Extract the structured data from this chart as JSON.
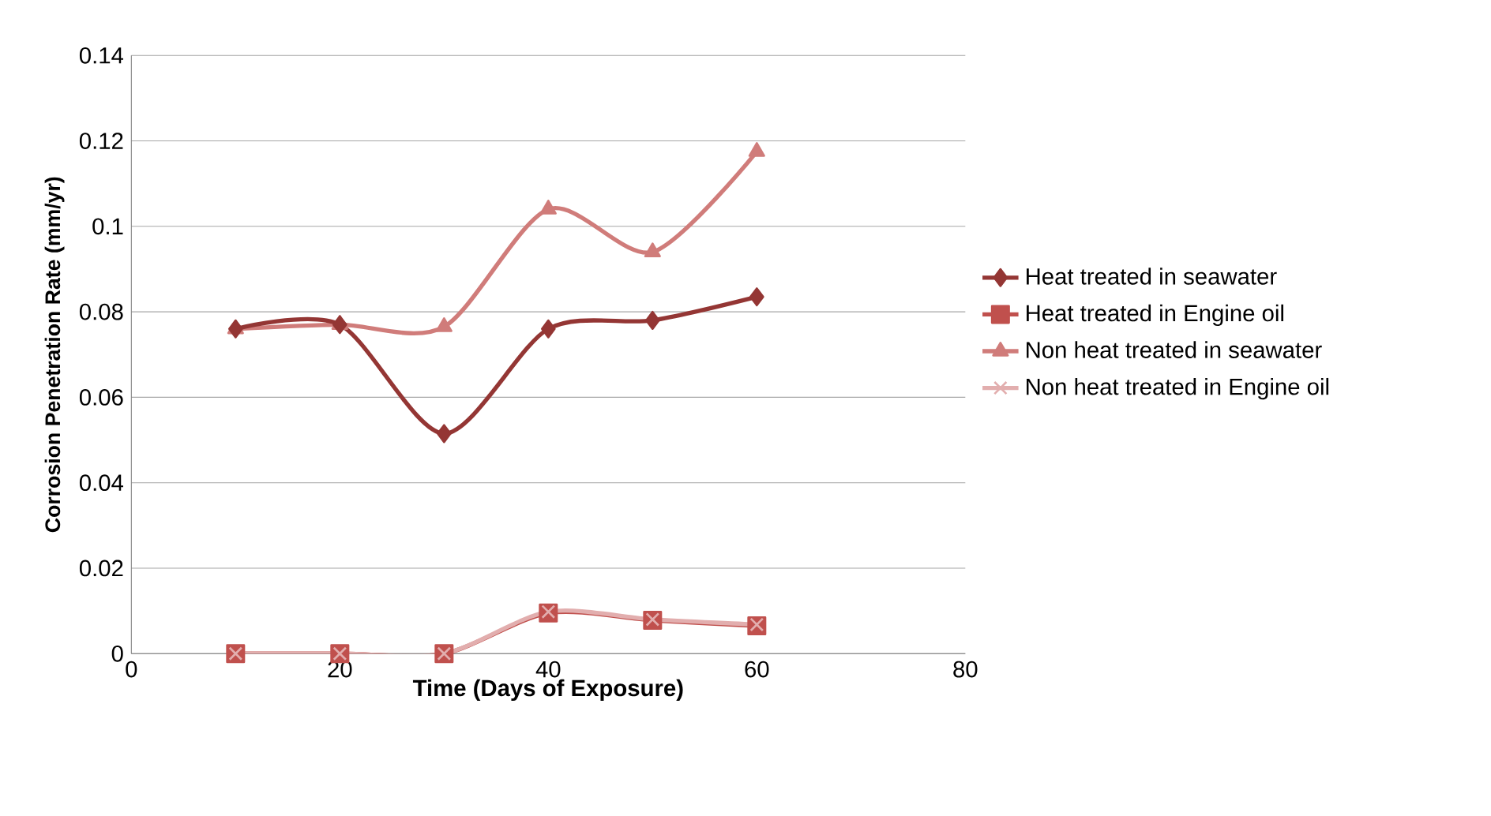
{
  "chart_data": {
    "type": "line",
    "xlabel": "Time (Days of Exposure)",
    "ylabel": "Corrosion Penetration Rate (mm/yr)",
    "x": [
      10,
      20,
      30,
      40,
      50,
      60
    ],
    "series": [
      {
        "name": "Heat treated in seawater",
        "color": "#943634",
        "marker": "diamond",
        "values": [
          0.076,
          0.077,
          0.0515,
          0.076,
          0.078,
          0.0835
        ]
      },
      {
        "name": "Heat treated in Engine oil",
        "color": "#c0504d",
        "marker": "square",
        "values": [
          0,
          0,
          0,
          0.0095,
          0.0078,
          0.0065
        ]
      },
      {
        "name": "Non heat treated in seawater",
        "color": "#d07c7a",
        "marker": "triangle",
        "values": [
          0.076,
          0.077,
          0.0765,
          0.104,
          0.094,
          0.1175
        ]
      },
      {
        "name": "Non heat treated in Engine oil",
        "color": "#e2aeae",
        "marker": "cross",
        "values": [
          0,
          0,
          0,
          0.0098,
          0.008,
          0.0068
        ]
      }
    ],
    "xlim": [
      0,
      80
    ],
    "xticks": [
      0,
      20,
      40,
      60,
      80
    ],
    "ylim": [
      0,
      0.14
    ],
    "yticks": [
      0,
      0.02,
      0.04,
      0.06,
      0.08,
      0.1,
      0.12,
      0.14
    ],
    "grid": "y",
    "legend": "right",
    "line_style": "solid"
  }
}
